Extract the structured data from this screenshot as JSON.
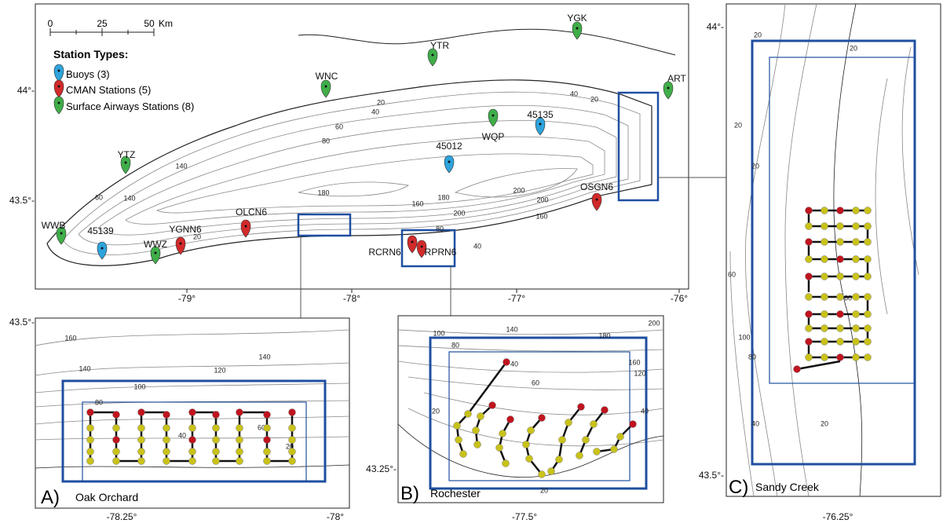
{
  "scale_bar": {
    "ticks": [
      "0",
      "25",
      "50"
    ],
    "unit": "Km"
  },
  "legend": {
    "title": "Station Types:",
    "items": [
      "Buoys (3)",
      "CMAN Stations (5)",
      "Surface Airways Stations (8)"
    ]
  },
  "stations": {
    "buoys": [
      "45135",
      "45012",
      "45139"
    ],
    "cman": [
      "OSGN6",
      "OLCN6",
      "YGNN6",
      "RCRN6",
      "RPRN6"
    ],
    "surface_airways": [
      "YGK",
      "YTR",
      "WNC",
      "ART",
      "WQP",
      "YTZ",
      "WWB",
      "WWZ"
    ]
  },
  "main_map": {
    "lat_labels": [
      "44°-",
      "43.5°-"
    ],
    "lon_labels": [
      "-79°",
      "-78°",
      "-77°",
      "-76°"
    ],
    "contour_labels": [
      "20",
      "40",
      "60",
      "80",
      "140",
      "140",
      "180",
      "160",
      "180",
      "200",
      "200",
      "200",
      "160",
      "80",
      "40",
      "20",
      "60",
      "20",
      "40"
    ]
  },
  "panels": [
    {
      "letter": "A)",
      "name": "Oak Orchard",
      "lat_labels": [
        "43.5°-"
      ],
      "lon_labels": [
        "-78.25°",
        "-78°"
      ],
      "contour_labels": [
        "160",
        "140",
        "140",
        "120",
        "100",
        "80",
        "60",
        "40",
        "20"
      ]
    },
    {
      "letter": "B)",
      "name": "Rochester",
      "lat_labels": [
        "43.25°-"
      ],
      "lon_labels": [
        "-77.5°"
      ],
      "contour_labels": [
        "100",
        "80",
        "140",
        "180",
        "200",
        "160",
        "120",
        "60",
        "40",
        "40",
        "20",
        "20"
      ]
    },
    {
      "letter": "C)",
      "name": "Sandy Creek",
      "lat_labels": [
        "44°-",
        "43.5°-"
      ],
      "lon_labels": [
        "-76.25°"
      ],
      "contour_labels": [
        "20",
        "20",
        "20",
        "20",
        "60",
        "100",
        "80",
        "40",
        "20",
        "60"
      ]
    }
  ]
}
